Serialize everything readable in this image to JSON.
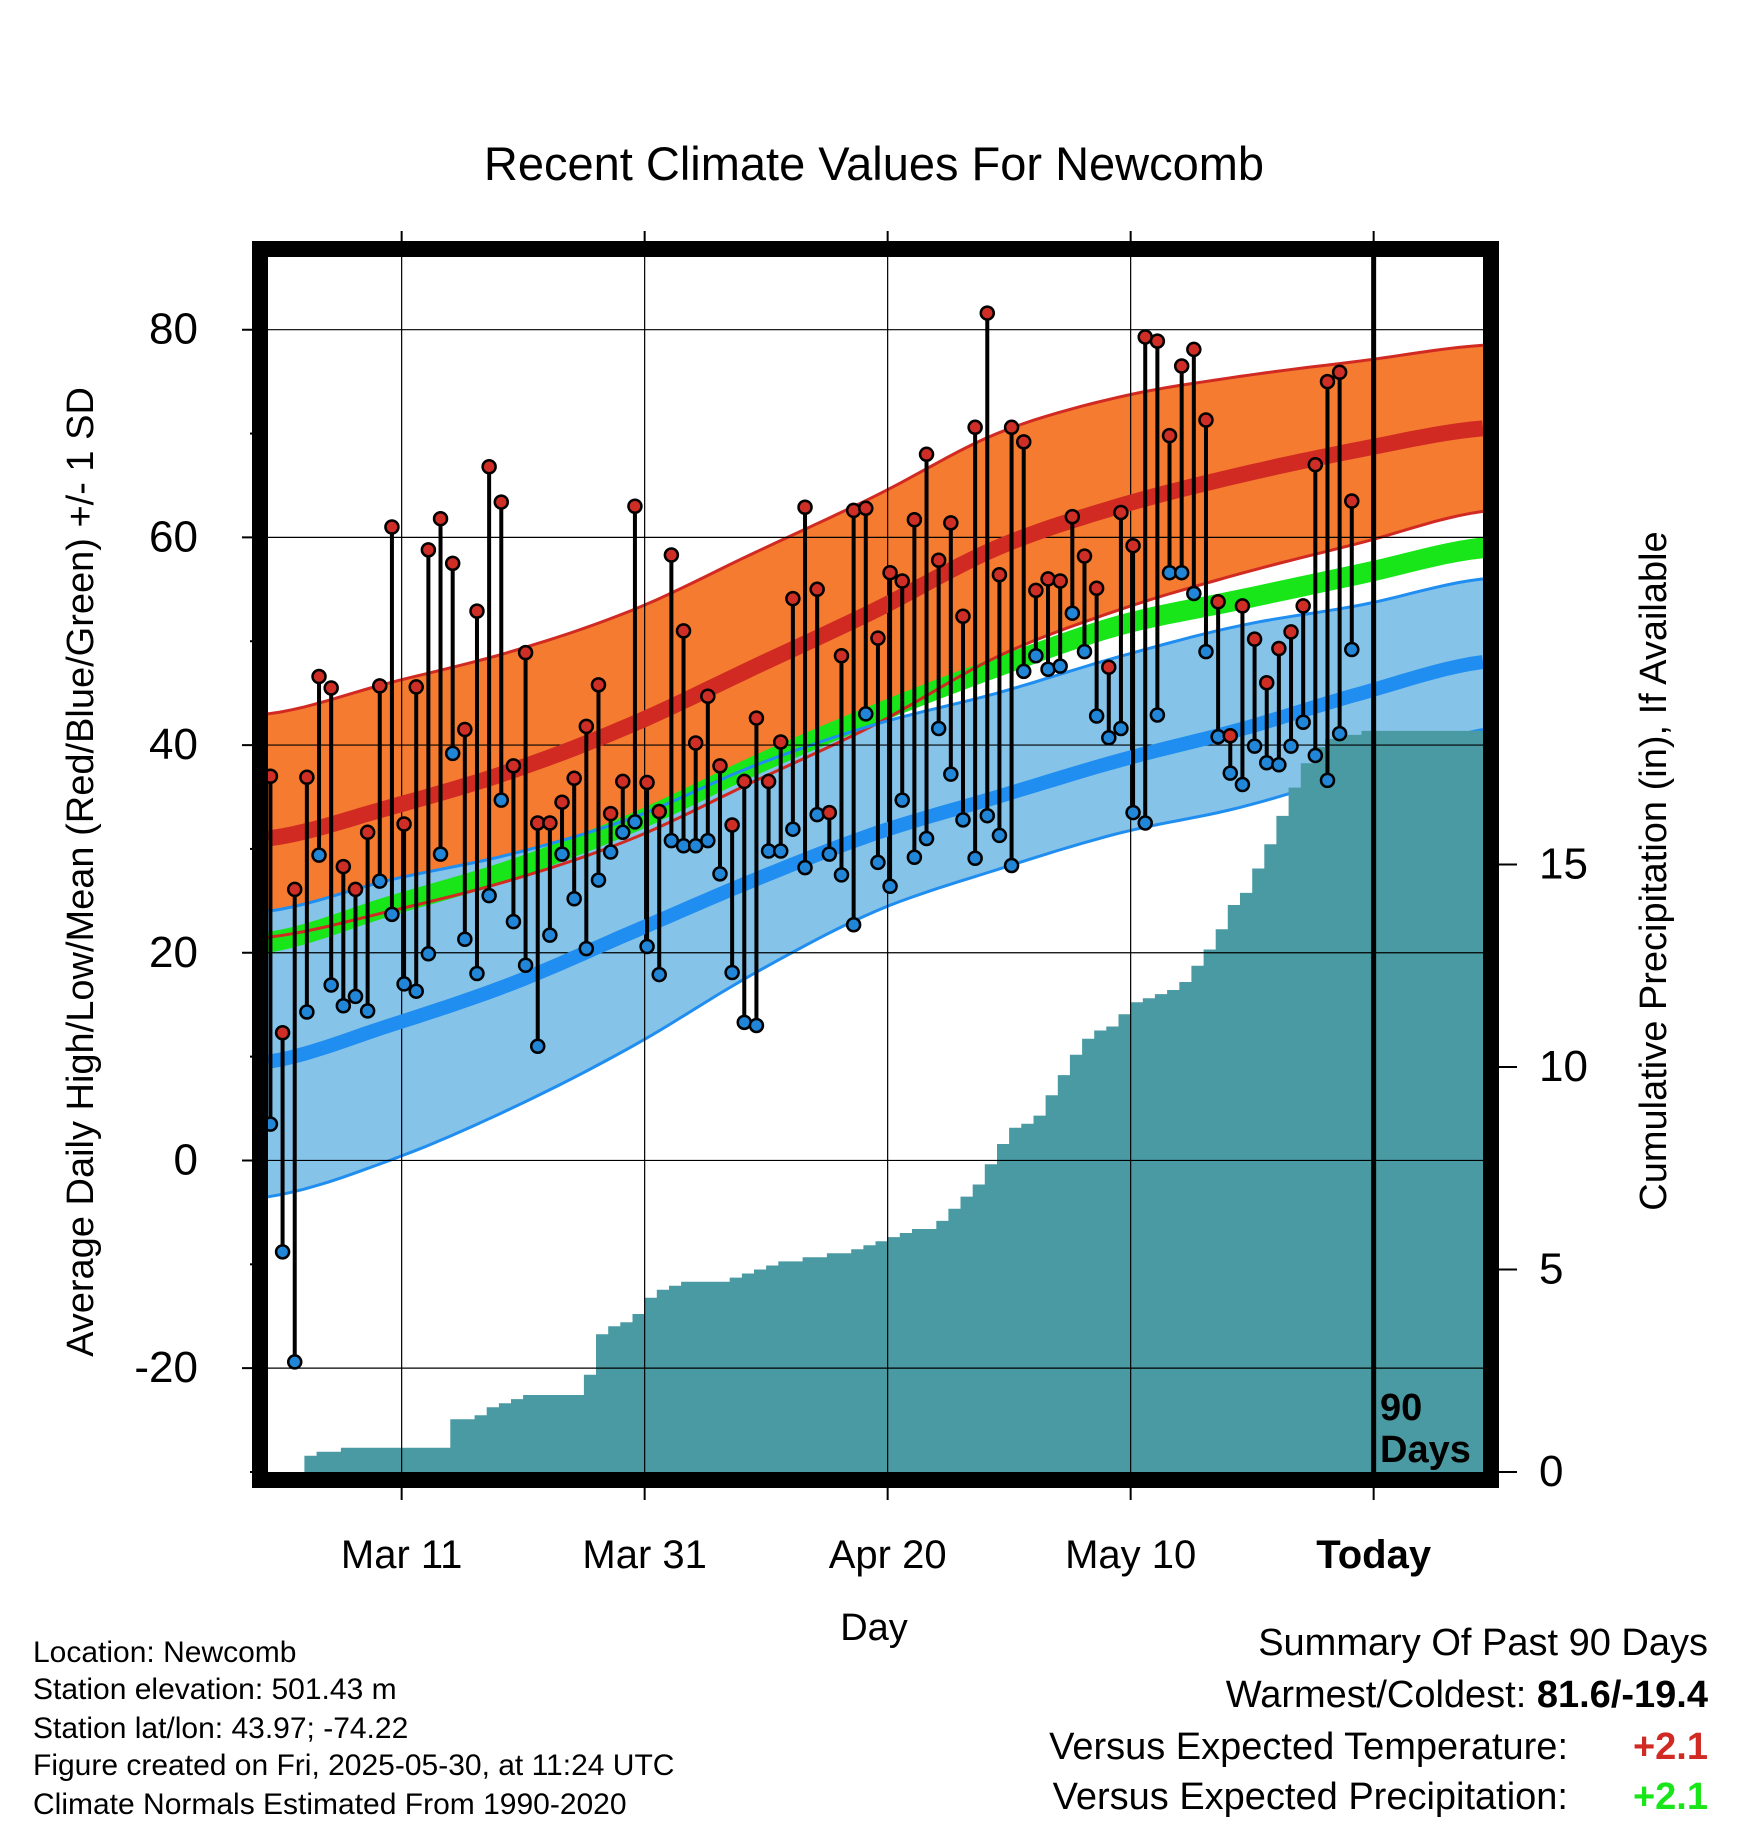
{
  "chart_data": {
    "type": "line",
    "title": "Recent Climate Values For Newcomb",
    "xlabel": "Day",
    "ylabel": "Average Daily High/Low/Mean (Red/Blue/Green) +/- 1 SD",
    "y2label": "Cumulative Precipitation (in), If Available",
    "ylim": [
      -30,
      87
    ],
    "y2lim": [
      0,
      30
    ],
    "y_ticks": [
      "80",
      "60",
      "40",
      "20",
      "0",
      "-20"
    ],
    "y2_ticks": [
      "15",
      "10",
      "5",
      "0"
    ],
    "x_ticks": [
      {
        "day": 11,
        "label": "Mar 11"
      },
      {
        "day": 31,
        "label": "Mar 31"
      },
      {
        "day": 51,
        "label": "Apr 20"
      },
      {
        "day": 71,
        "label": "May 10"
      },
      {
        "day": 91,
        "label": "Today"
      }
    ],
    "today_marker": {
      "day": 91,
      "label_line1": "90",
      "label_line2": "Days"
    },
    "grid": true,
    "colors": {
      "high_band": "#f47b30",
      "high_mean": "#d02a22",
      "low_band": "#85c3e8",
      "low_mean": "#1f8ef0",
      "mean_band": "#ffffff",
      "mean_line": "#19e619",
      "precip": "#4a9aa3",
      "dot_high": "#cf2e26",
      "dot_low": "#2286d8"
    },
    "normals": {
      "days": [
        0,
        10,
        20,
        30,
        40,
        50,
        60,
        70,
        80,
        90,
        100
      ],
      "high_mean": [
        31,
        34,
        37.5,
        42,
        47.5,
        53,
        59,
        63,
        66,
        68.5,
        70.5
      ],
      "high_sd_upper": [
        43,
        46,
        49,
        53,
        58.5,
        64,
        70,
        73.5,
        75.5,
        77,
        78.5
      ],
      "high_sd_lower": [
        21.5,
        24,
        27,
        31,
        36.5,
        42,
        48.5,
        53,
        56.5,
        59.5,
        62.5
      ],
      "low_mean": [
        9.5,
        13,
        17,
        22,
        27,
        31.5,
        35,
        38.5,
        41.5,
        45,
        48
      ],
      "low_sd_upper": [
        24,
        27,
        29.5,
        33,
        38,
        42,
        45,
        48.5,
        51.5,
        53.5,
        56
      ],
      "low_sd_lower": [
        -3.5,
        0,
        5,
        11,
        18,
        24,
        28,
        31.5,
        34,
        37.5,
        41.5
      ],
      "mean_lower": [
        20,
        23.5,
        27,
        31.5,
        37,
        42,
        46.5,
        50.5,
        53,
        55.5,
        58
      ],
      "mean_upper": [
        22,
        25.5,
        29,
        33.5,
        39,
        44,
        48.5,
        52.5,
        55,
        57.5,
        60
      ]
    },
    "series": [
      {
        "name": "High",
        "values": [
          37,
          12.3,
          26.1,
          36.9,
          46.6,
          45.5,
          28.3,
          26.1,
          31.6,
          45.7,
          61,
          32.4,
          45.6,
          58.8,
          61.8,
          57.5,
          41.5,
          52.9,
          66.8,
          63.4,
          38,
          48.9,
          32.5,
          32.5,
          34.5,
          36.8,
          41.8,
          45.8,
          33.4,
          36.5,
          63,
          36.4,
          33.6,
          58.3,
          51,
          40.2,
          44.7,
          38,
          32.3,
          36.5,
          42.6,
          36.5,
          40.3,
          54.1,
          62.9,
          55,
          33.5,
          48.6,
          62.6,
          62.8,
          50.3,
          56.6,
          55.8,
          61.7,
          68,
          57.8,
          61.4,
          52.4,
          70.6,
          81.6,
          56.4,
          70.6,
          69.2,
          54.9,
          56,
          55.8,
          62,
          58.2,
          55.1,
          47.5,
          62.4,
          59.2,
          79.3,
          78.9,
          69.8,
          76.5,
          78.1,
          71.3,
          53.8,
          40.9,
          53.4,
          50.2,
          46,
          49.3,
          50.9,
          53.4,
          67,
          75,
          75.9,
          63.5
        ]
      },
      {
        "name": "Low",
        "values": [
          3.5,
          -8.8,
          -19.4,
          14.3,
          29.4,
          16.9,
          14.9,
          15.8,
          14.4,
          26.9,
          23.7,
          17,
          16.3,
          19.9,
          29.5,
          39.2,
          21.3,
          18,
          25.5,
          34.7,
          23,
          18.8,
          11,
          21.7,
          29.5,
          25.2,
          20.4,
          27,
          29.7,
          31.6,
          32.6,
          20.6,
          17.9,
          30.8,
          30.3,
          30.3,
          30.8,
          27.6,
          18.1,
          13.3,
          13,
          29.8,
          29.8,
          31.9,
          28.2,
          33.3,
          29.5,
          27.5,
          22.7,
          43,
          28.7,
          26.4,
          34.7,
          29.2,
          31,
          41.6,
          37.2,
          32.8,
          29.1,
          33.2,
          31.3,
          28.4,
          47.1,
          48.6,
          47.3,
          47.6,
          52.7,
          49,
          42.8,
          40.7,
          41.6,
          33.5,
          32.5,
          42.9,
          56.6,
          56.6,
          54.6,
          49,
          40.8,
          37.3,
          36.2,
          39.9,
          38.3,
          38.1,
          39.9,
          42.2,
          39,
          36.6,
          41.1,
          49.2
        ]
      },
      {
        "name": "Cumulative Precipitation",
        "values": [
          0,
          0,
          0,
          0.4,
          0.5,
          0.5,
          0.6,
          0.6,
          0.6,
          0.6,
          0.6,
          0.6,
          0.6,
          0.6,
          0.6,
          1.3,
          1.3,
          1.4,
          1.6,
          1.7,
          1.8,
          1.9,
          1.9,
          1.9,
          1.9,
          1.9,
          2.4,
          3.4,
          3.6,
          3.7,
          3.9,
          4.3,
          4.5,
          4.6,
          4.7,
          4.7,
          4.7,
          4.7,
          4.8,
          4.9,
          5,
          5.1,
          5.2,
          5.2,
          5.3,
          5.3,
          5.4,
          5.4,
          5.5,
          5.6,
          5.7,
          5.8,
          5.9,
          6,
          6,
          6.2,
          6.5,
          6.8,
          7.1,
          7.6,
          8.1,
          8.5,
          8.6,
          8.8,
          9.3,
          9.8,
          10.3,
          10.7,
          10.9,
          11,
          11.3,
          11.6,
          11.7,
          11.8,
          11.9,
          12.1,
          12.5,
          12.9,
          13.4,
          14,
          14.3,
          14.9,
          15.5,
          16.2,
          16.9,
          17.5,
          17.9,
          18.1,
          18.2,
          18.2,
          18.3,
          18.3,
          18.3,
          18.3,
          18.3,
          18.3,
          18.3,
          18.3,
          18.3,
          18.3,
          18.3
        ]
      }
    ]
  },
  "info": {
    "location": "Location: Newcomb",
    "elevation": "Station elevation: 501.43 m",
    "latlon": "Station lat/lon: 43.97; -74.22",
    "created": "Figure created on Fri, 2025-05-30, at 11:24 UTC",
    "normals": "Climate Normals Estimated From 1990-2020"
  },
  "summary": {
    "title": "Summary Of Past 90 Days",
    "warmest_label": "Warmest/Coldest: ",
    "warmest_value": "81.6/-19.4",
    "temp_label": "Versus Expected Temperature:",
    "temp_value": "+2.1",
    "temp_color": "#d02a22",
    "precip_label": "Versus Expected Precipitation:",
    "precip_value": "+2.1",
    "precip_color": "#19e619"
  }
}
